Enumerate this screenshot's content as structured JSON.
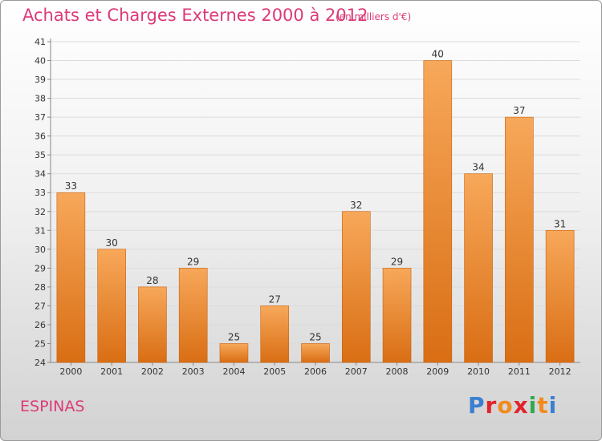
{
  "header": {
    "title": "Achats et Charges Externes 2000 à 2012",
    "unit": "(en milliers d'€)"
  },
  "footer": {
    "commune": "ESPINAS",
    "brand": "Proxiti",
    "brand_colors": [
      "#3a7fd1",
      "#e3232c",
      "#f28a1c",
      "#e3232c",
      "#2fa84f",
      "#f28a1c",
      "#3a7fd1"
    ]
  },
  "colors": {
    "accent": "#dc3a78",
    "bar_top": "#f7a85a",
    "bar_bottom": "#d96e14",
    "bar_edge": "#c8620f"
  },
  "chart_data": {
    "type": "bar",
    "categories": [
      "2000",
      "2001",
      "2002",
      "2003",
      "2004",
      "2005",
      "2006",
      "2007",
      "2008",
      "2009",
      "2010",
      "2011",
      "2012"
    ],
    "values": [
      33,
      30,
      28,
      29,
      25,
      27,
      25,
      32,
      29,
      40,
      34,
      37,
      31
    ],
    "title": "Achats et Charges Externes 2000 à 2012",
    "ylim": [
      24,
      41
    ],
    "yticks": [
      24,
      25,
      26,
      27,
      28,
      29,
      30,
      31,
      32,
      33,
      34,
      35,
      36,
      37,
      38,
      39,
      40,
      41
    ],
    "grid": true,
    "data_labels": true
  }
}
